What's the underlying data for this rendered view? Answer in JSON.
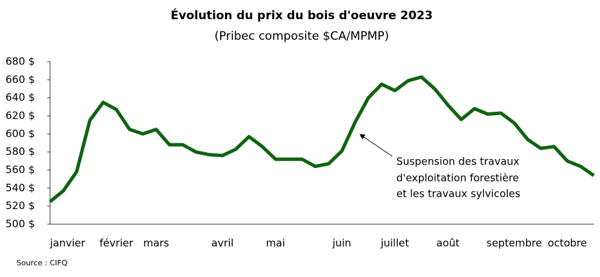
{
  "chart_data": {
    "type": "line",
    "title": "Évolution du prix du bois d'oeuvre 2023",
    "subtitle": "(Pribec composite $CA/MPMP)",
    "source": "Source : CIFQ",
    "annotation": [
      "Suspension des travaux",
      "d'exploitation forestière",
      "et les travaux sylvicoles"
    ],
    "categories": [
      "janvier",
      null,
      null,
      null,
      null,
      "février",
      null,
      null,
      "mars",
      null,
      null,
      null,
      null,
      "avril",
      null,
      null,
      null,
      "mai",
      null,
      null,
      null,
      null,
      "juin",
      null,
      null,
      null,
      "juillet",
      null,
      null,
      null,
      "août",
      null,
      null,
      null,
      null,
      "septembre",
      null,
      null,
      null,
      "octobre",
      null,
      null
    ],
    "series": [
      {
        "name": "Pribec composite",
        "color": "#116311",
        "values": [
          525,
          537,
          558,
          615,
          635,
          627,
          605,
          600,
          605,
          588,
          588,
          580,
          577,
          576,
          583,
          597,
          586,
          572,
          572,
          572,
          564,
          567,
          581,
          613,
          640,
          655,
          648,
          659,
          663,
          650,
          632,
          616,
          628,
          622,
          623,
          612,
          594,
          584,
          586,
          570,
          564,
          554
        ]
      }
    ],
    "ylim": [
      500,
      680
    ],
    "yticks": [
      {
        "value": 500,
        "label": "500 $"
      },
      {
        "value": 520,
        "label": "520 $"
      },
      {
        "value": 540,
        "label": "540 $"
      },
      {
        "value": 560,
        "label": "560 $"
      },
      {
        "value": 580,
        "label": "580 $"
      },
      {
        "value": 600,
        "label": "600 $"
      },
      {
        "value": 620,
        "label": "620 $"
      },
      {
        "value": 640,
        "label": "640 $"
      },
      {
        "value": 660,
        "label": "660 $"
      },
      {
        "value": 680,
        "label": "680 $"
      }
    ],
    "grid": false
  }
}
